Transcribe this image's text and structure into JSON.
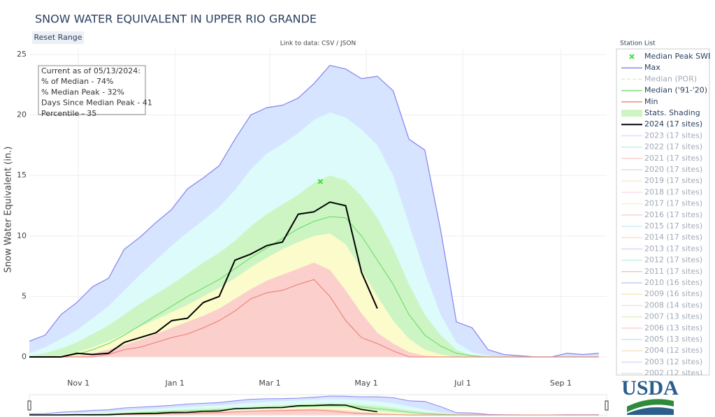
{
  "chart_data": {
    "type": "line",
    "title": "SNOW WATER EQUIVALENT IN UPPER RIO GRANDE",
    "reset_button": "Reset Range",
    "data_link": "Link to data: CSV / JSON",
    "y_label": "Snow Water Equivalent (in.)",
    "legend_title": "Station List",
    "legend_position": "right",
    "logo": "USDA",
    "info": [
      "Current as of 05/13/2024:",
      "% of Median - 74%",
      "% Median Peak - 32%",
      "Days Since Median Peak - 41",
      "Percentile - 35"
    ],
    "grid": true,
    "xlim": [
      0,
      365
    ],
    "xticks": [
      {
        "value": 31,
        "label": "Nov 1"
      },
      {
        "value": 92,
        "label": "Jan 1"
      },
      {
        "value": 152,
        "label": "Mar 1"
      },
      {
        "value": 213,
        "label": "May 1"
      },
      {
        "value": 274,
        "label": "Jul 1"
      },
      {
        "value": 336,
        "label": "Sep 1"
      }
    ],
    "ylim": [
      0,
      25
    ],
    "yticks": [
      0,
      5,
      10,
      15,
      20,
      25
    ],
    "x": [
      0,
      10,
      20,
      30,
      40,
      50,
      60,
      70,
      80,
      90,
      100,
      110,
      120,
      130,
      140,
      150,
      160,
      170,
      180,
      190,
      200,
      210,
      220,
      230,
      240,
      250,
      260,
      270,
      280,
      290,
      300,
      310,
      320,
      330,
      340,
      350,
      360
    ],
    "series": [
      {
        "name": "Median Peak SWE",
        "color": "#44dd44",
        "style": "marker",
        "x": [
          184
        ],
        "values": [
          14.5
        ]
      },
      {
        "name": "Max",
        "color": "#8a8aee",
        "style": "line",
        "fill": "#d7e4ff",
        "values": [
          1.3,
          1.8,
          3.5,
          4.5,
          5.8,
          6.5,
          8.9,
          9.9,
          11.1,
          12.2,
          13.9,
          14.8,
          15.8,
          18.0,
          20.0,
          20.6,
          20.8,
          21.4,
          22.6,
          24.1,
          23.8,
          23.0,
          23.2,
          22.0,
          18.0,
          17.1,
          10.5,
          2.9,
          2.4,
          0.6,
          0.2,
          0.1,
          0,
          0,
          0.3,
          0.2,
          0.3
        ]
      },
      {
        "name": "Median (POR)",
        "color": "#9fdf9f",
        "style": "dash",
        "visible": false
      },
      {
        "name": "Median ('91-'20)",
        "color": "#77e077",
        "style": "line",
        "values": [
          0,
          0,
          0,
          0.2,
          0.6,
          1.1,
          1.8,
          2.6,
          3.4,
          4.2,
          5.0,
          5.7,
          6.4,
          7.3,
          8.2,
          9.0,
          9.8,
          10.6,
          11.2,
          11.6,
          11.5,
          10.0,
          8.0,
          6.0,
          3.5,
          1.8,
          0.9,
          0.3,
          0.1,
          0,
          0,
          0,
          0,
          0,
          0,
          0,
          0
        ]
      },
      {
        "name": "Min",
        "color": "#f08a80",
        "style": "line",
        "values": [
          0,
          0,
          0,
          0,
          0,
          0.2,
          0.6,
          0.8,
          1.2,
          1.6,
          1.9,
          2.4,
          3.0,
          3.8,
          4.8,
          5.3,
          5.5,
          6.0,
          6.4,
          5.0,
          3.0,
          1.6,
          1.1,
          0.5,
          0,
          0,
          0,
          0,
          0,
          0,
          0,
          0,
          0,
          0,
          0,
          0,
          0
        ]
      },
      {
        "name": "Stats. Shading",
        "color": "#cdf5c4",
        "style": "area",
        "edges": [
          {
            "color": "#ddfbfa",
            "values": [
              0.3,
              0.8,
              1.5,
              2.2,
              3.2,
              4.2,
              5.5,
              6.8,
              8.0,
              9.2,
              10.3,
              11.3,
              12.4,
              13.8,
              15.5,
              16.8,
              17.6,
              18.5,
              19.6,
              20.2,
              19.8,
              18.8,
              17.5,
              15.0,
              11.0,
              7.0,
              3.5,
              1.2,
              0.4,
              0.1,
              0,
              0,
              0,
              0,
              0,
              0,
              0
            ]
          },
          {
            "color": "#cdf5c4",
            "values": [
              0.1,
              0.3,
              0.7,
              1.2,
              1.9,
              2.6,
              3.5,
              4.4,
              5.2,
              6.0,
              6.9,
              7.8,
              8.6,
              9.6,
              10.8,
              11.8,
              12.6,
              13.4,
              14.4,
              15.0,
              14.6,
              13.3,
              11.5,
              9.0,
              6.0,
              3.5,
              1.8,
              0.6,
              0.1,
              0,
              0,
              0,
              0,
              0,
              0,
              0,
              0
            ]
          },
          {
            "color": "#fbfbcc",
            "values": [
              0,
              0,
              0.1,
              0.4,
              0.8,
              1.3,
              1.9,
              2.5,
              3.1,
              3.7,
              4.3,
              5.0,
              5.7,
              6.5,
              7.4,
              8.2,
              8.9,
              9.5,
              10.0,
              10.2,
              9.3,
              7.2,
              5.0,
              3.0,
              1.5,
              0.6,
              0.2,
              0,
              0,
              0,
              0,
              0,
              0,
              0,
              0,
              0,
              0
            ]
          },
          {
            "color": "#fbd0cc",
            "values": [
              0,
              0,
              0,
              0.1,
              0.3,
              0.6,
              1.0,
              1.4,
              1.9,
              2.4,
              2.9,
              3.4,
              4.0,
              4.8,
              5.6,
              6.3,
              6.8,
              7.3,
              7.8,
              7.2,
              5.5,
              3.6,
              2.0,
              1.1,
              0.4,
              0.1,
              0,
              0,
              0,
              0,
              0,
              0,
              0,
              0,
              0,
              0,
              0
            ]
          }
        ]
      },
      {
        "name": "2024 (17 sites)",
        "color": "#000000",
        "style": "line",
        "width": 2,
        "values": [
          0,
          0,
          0,
          0.3,
          0.2,
          0.3,
          1.2,
          1.6,
          2.0,
          3.0,
          3.2,
          4.5,
          5.0,
          8.0,
          8.5,
          9.2,
          9.5,
          11.8,
          12.0,
          12.8,
          12.5,
          7.0,
          4.0,
          null,
          null,
          null,
          null,
          null,
          null,
          null,
          null,
          null,
          null,
          null,
          null,
          null,
          null
        ]
      },
      {
        "name": "2023 (17 sites)",
        "color": "#c9b3f5",
        "style": "line",
        "visible": false
      },
      {
        "name": "2022 (17 sites)",
        "color": "#7ee0c0",
        "style": "line",
        "visible": false
      },
      {
        "name": "2021 (17 sites)",
        "color": "#f29a8a",
        "style": "line",
        "visible": false
      },
      {
        "name": "2020 (17 sites)",
        "color": "#b0b0e0",
        "style": "line",
        "visible": false
      },
      {
        "name": "2019 (17 sites)",
        "color": "#f5d080",
        "style": "line",
        "visible": false
      },
      {
        "name": "2018 (17 sites)",
        "color": "#f5b0d0",
        "style": "line",
        "visible": false
      },
      {
        "name": "2017 (17 sites)",
        "color": "#cfe89a",
        "style": "line",
        "visible": false
      },
      {
        "name": "2016 (17 sites)",
        "color": "#f5a0a0",
        "style": "line",
        "visible": false
      },
      {
        "name": "2015 (17 sites)",
        "color": "#80e0f0",
        "style": "line",
        "visible": false
      },
      {
        "name": "2014 (17 sites)",
        "color": "#f5c090",
        "style": "line",
        "visible": false
      },
      {
        "name": "2013 (17 sites)",
        "color": "#c0a0e0",
        "style": "line",
        "visible": false
      },
      {
        "name": "2012 (17 sites)",
        "color": "#80e0b0",
        "style": "line",
        "visible": false
      },
      {
        "name": "2011 (17 sites)",
        "color": "#f08070",
        "style": "line",
        "visible": false
      },
      {
        "name": "2010 (16 sites)",
        "color": "#8090e0",
        "style": "line",
        "visible": false
      },
      {
        "name": "2009 (16 sites)",
        "color": "#f0d070",
        "style": "line",
        "visible": false
      },
      {
        "name": "2008 (14 sites)",
        "color": "#f5b0d0",
        "style": "line",
        "visible": false
      },
      {
        "name": "2007 (13 sites)",
        "color": "#c0e080",
        "style": "line",
        "visible": false
      },
      {
        "name": "2006 (13 sites)",
        "color": "#f5a0a0",
        "style": "line",
        "visible": false
      },
      {
        "name": "2005 (13 sites)",
        "color": "#80d0f0",
        "style": "line",
        "visible": false
      },
      {
        "name": "2004 (12 sites)",
        "color": "#f5c080",
        "style": "line",
        "visible": false
      },
      {
        "name": "2003 (12 sites)",
        "color": "#c0a0f0",
        "style": "line",
        "visible": false
      },
      {
        "name": "2002 (12 sites)",
        "color": "#c0c0c0",
        "style": "line",
        "visible": false
      }
    ]
  }
}
